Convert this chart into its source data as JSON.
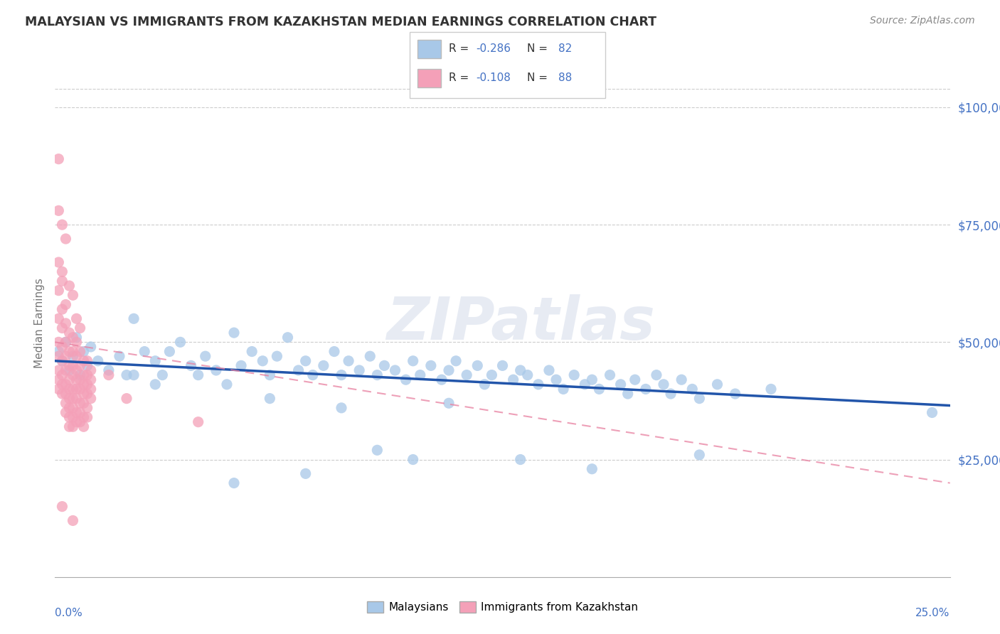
{
  "title": "MALAYSIAN VS IMMIGRANTS FROM KAZAKHSTAN MEDIAN EARNINGS CORRELATION CHART",
  "source": "Source: ZipAtlas.com",
  "ylabel": "Median Earnings",
  "xmin": 0.0,
  "xmax": 0.25,
  "ymin": 0,
  "ymax": 108000,
  "yticks": [
    25000,
    50000,
    75000,
    100000
  ],
  "ytick_labels": [
    "$25,000",
    "$50,000",
    "$75,000",
    "$100,000"
  ],
  "watermark": "ZIPatlas",
  "r_color": "#4472C4",
  "blue_dot_color": "#a8c8e8",
  "pink_dot_color": "#f4a0b8",
  "blue_line_color": "#2255aa",
  "pink_line_color": "#e880a0",
  "legend_label1": "Malaysians",
  "legend_label2": "Immigrants from Kazakhstan",
  "blue_trend_x": [
    0.0,
    0.25
  ],
  "blue_trend_y": [
    46000,
    36500
  ],
  "pink_trend_x": [
    0.0,
    0.25
  ],
  "pink_trend_y": [
    50000,
    20000
  ],
  "blue_scatter": [
    [
      0.001,
      48000
    ],
    [
      0.002,
      46000
    ],
    [
      0.003,
      50000
    ],
    [
      0.004,
      44000
    ],
    [
      0.005,
      47000
    ],
    [
      0.006,
      51000
    ],
    [
      0.007,
      43000
    ],
    [
      0.008,
      48000
    ],
    [
      0.009,
      45000
    ],
    [
      0.01,
      49000
    ],
    [
      0.012,
      46000
    ],
    [
      0.015,
      44000
    ],
    [
      0.018,
      47000
    ],
    [
      0.02,
      43000
    ],
    [
      0.022,
      55000
    ],
    [
      0.025,
      48000
    ],
    [
      0.028,
      46000
    ],
    [
      0.03,
      43000
    ],
    [
      0.032,
      48000
    ],
    [
      0.035,
      50000
    ],
    [
      0.038,
      45000
    ],
    [
      0.04,
      43000
    ],
    [
      0.042,
      47000
    ],
    [
      0.045,
      44000
    ],
    [
      0.048,
      41000
    ],
    [
      0.05,
      52000
    ],
    [
      0.052,
      45000
    ],
    [
      0.055,
      48000
    ],
    [
      0.058,
      46000
    ],
    [
      0.06,
      43000
    ],
    [
      0.062,
      47000
    ],
    [
      0.065,
      51000
    ],
    [
      0.068,
      44000
    ],
    [
      0.07,
      46000
    ],
    [
      0.072,
      43000
    ],
    [
      0.075,
      45000
    ],
    [
      0.078,
      48000
    ],
    [
      0.08,
      43000
    ],
    [
      0.082,
      46000
    ],
    [
      0.085,
      44000
    ],
    [
      0.088,
      47000
    ],
    [
      0.09,
      43000
    ],
    [
      0.092,
      45000
    ],
    [
      0.095,
      44000
    ],
    [
      0.098,
      42000
    ],
    [
      0.1,
      46000
    ],
    [
      0.102,
      43000
    ],
    [
      0.105,
      45000
    ],
    [
      0.108,
      42000
    ],
    [
      0.11,
      44000
    ],
    [
      0.112,
      46000
    ],
    [
      0.115,
      43000
    ],
    [
      0.118,
      45000
    ],
    [
      0.12,
      41000
    ],
    [
      0.122,
      43000
    ],
    [
      0.125,
      45000
    ],
    [
      0.128,
      42000
    ],
    [
      0.13,
      44000
    ],
    [
      0.132,
      43000
    ],
    [
      0.135,
      41000
    ],
    [
      0.138,
      44000
    ],
    [
      0.14,
      42000
    ],
    [
      0.142,
      40000
    ],
    [
      0.145,
      43000
    ],
    [
      0.148,
      41000
    ],
    [
      0.15,
      42000
    ],
    [
      0.152,
      40000
    ],
    [
      0.155,
      43000
    ],
    [
      0.158,
      41000
    ],
    [
      0.16,
      39000
    ],
    [
      0.162,
      42000
    ],
    [
      0.165,
      40000
    ],
    [
      0.168,
      43000
    ],
    [
      0.17,
      41000
    ],
    [
      0.172,
      39000
    ],
    [
      0.175,
      42000
    ],
    [
      0.178,
      40000
    ],
    [
      0.18,
      38000
    ],
    [
      0.185,
      41000
    ],
    [
      0.19,
      39000
    ],
    [
      0.2,
      40000
    ],
    [
      0.245,
      35000
    ],
    [
      0.022,
      43000
    ],
    [
      0.028,
      41000
    ],
    [
      0.05,
      20000
    ],
    [
      0.07,
      22000
    ],
    [
      0.09,
      27000
    ],
    [
      0.1,
      25000
    ],
    [
      0.13,
      25000
    ],
    [
      0.15,
      23000
    ],
    [
      0.18,
      26000
    ],
    [
      0.06,
      38000
    ],
    [
      0.08,
      36000
    ],
    [
      0.11,
      37000
    ]
  ],
  "pink_scatter": [
    [
      0.001,
      89000
    ],
    [
      0.001,
      78000
    ],
    [
      0.002,
      75000
    ],
    [
      0.001,
      67000
    ],
    [
      0.002,
      65000
    ],
    [
      0.003,
      72000
    ],
    [
      0.001,
      61000
    ],
    [
      0.002,
      63000
    ],
    [
      0.003,
      58000
    ],
    [
      0.004,
      62000
    ],
    [
      0.001,
      55000
    ],
    [
      0.002,
      57000
    ],
    [
      0.003,
      54000
    ],
    [
      0.004,
      52000
    ],
    [
      0.005,
      60000
    ],
    [
      0.001,
      50000
    ],
    [
      0.002,
      53000
    ],
    [
      0.003,
      50000
    ],
    [
      0.004,
      48000
    ],
    [
      0.005,
      51000
    ],
    [
      0.006,
      55000
    ],
    [
      0.001,
      47000
    ],
    [
      0.002,
      49000
    ],
    [
      0.003,
      47000
    ],
    [
      0.004,
      45000
    ],
    [
      0.005,
      48000
    ],
    [
      0.006,
      50000
    ],
    [
      0.007,
      53000
    ],
    [
      0.001,
      44000
    ],
    [
      0.002,
      46000
    ],
    [
      0.003,
      44000
    ],
    [
      0.004,
      42000
    ],
    [
      0.005,
      45000
    ],
    [
      0.006,
      47000
    ],
    [
      0.007,
      48000
    ],
    [
      0.008,
      46000
    ],
    [
      0.001,
      42000
    ],
    [
      0.002,
      43000
    ],
    [
      0.003,
      41000
    ],
    [
      0.004,
      40000
    ],
    [
      0.005,
      43000
    ],
    [
      0.006,
      44000
    ],
    [
      0.007,
      45000
    ],
    [
      0.008,
      43000
    ],
    [
      0.009,
      46000
    ],
    [
      0.001,
      40000
    ],
    [
      0.002,
      41000
    ],
    [
      0.003,
      39000
    ],
    [
      0.004,
      38000
    ],
    [
      0.005,
      40000
    ],
    [
      0.006,
      42000
    ],
    [
      0.007,
      42000
    ],
    [
      0.008,
      41000
    ],
    [
      0.009,
      43000
    ],
    [
      0.01,
      44000
    ],
    [
      0.002,
      39000
    ],
    [
      0.003,
      37000
    ],
    [
      0.004,
      36000
    ],
    [
      0.005,
      38000
    ],
    [
      0.006,
      40000
    ],
    [
      0.007,
      40000
    ],
    [
      0.008,
      39000
    ],
    [
      0.009,
      41000
    ],
    [
      0.01,
      42000
    ],
    [
      0.003,
      35000
    ],
    [
      0.004,
      34000
    ],
    [
      0.005,
      36000
    ],
    [
      0.006,
      38000
    ],
    [
      0.007,
      37000
    ],
    [
      0.008,
      37000
    ],
    [
      0.009,
      39000
    ],
    [
      0.01,
      40000
    ],
    [
      0.004,
      32000
    ],
    [
      0.005,
      34000
    ],
    [
      0.006,
      35000
    ],
    [
      0.007,
      35000
    ],
    [
      0.008,
      34000
    ],
    [
      0.009,
      36000
    ],
    [
      0.005,
      32000
    ],
    [
      0.006,
      33000
    ],
    [
      0.007,
      33000
    ],
    [
      0.008,
      32000
    ],
    [
      0.009,
      34000
    ],
    [
      0.01,
      38000
    ],
    [
      0.015,
      43000
    ],
    [
      0.02,
      38000
    ],
    [
      0.04,
      33000
    ],
    [
      0.002,
      15000
    ],
    [
      0.005,
      12000
    ]
  ]
}
